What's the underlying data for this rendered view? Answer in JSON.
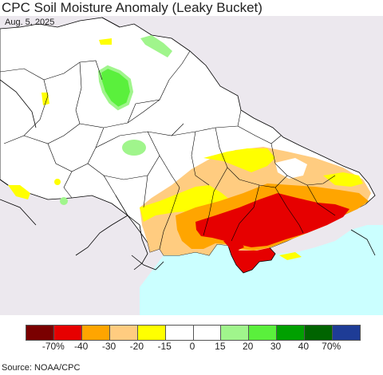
{
  "header": {
    "title": "CPC Soil Moisture Anomaly (Leaky Bucket)",
    "date": "Aug. 5, 2025"
  },
  "legend": {
    "colors": [
      "#7a0000",
      "#e60000",
      "#ffa500",
      "#ffcc80",
      "#ffff00",
      "#ffffff",
      "#ffffff",
      "#a0f58c",
      "#5af03c",
      "#00a000",
      "#006400",
      "#1e3c96"
    ],
    "labels": [
      "-70%",
      "-40",
      "-30",
      "-20",
      "-15",
      "0",
      "15",
      "20",
      "30",
      "40",
      "70%"
    ]
  },
  "colors": {
    "land": "#ffffff",
    "outside_land": "#ece8ee",
    "sea": "#cbffff",
    "border": "#000000"
  },
  "footer": {
    "source": "Source: NOAA/CPC"
  }
}
